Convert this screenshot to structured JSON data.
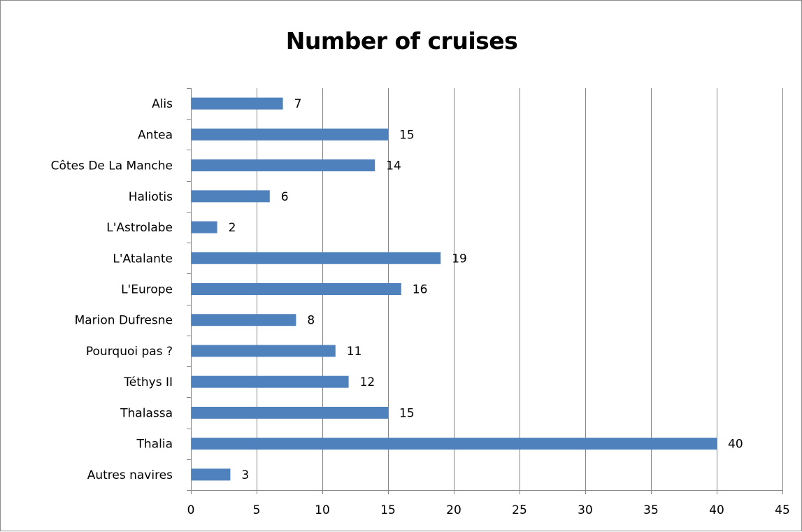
{
  "chart_data": {
    "type": "bar",
    "orientation": "horizontal",
    "title": "Number of cruises",
    "xlabel": "",
    "ylabel": "",
    "categories": [
      "Alis",
      "Antea",
      "Côtes De La Manche",
      "Haliotis",
      "L'Astrolabe",
      "L'Atalante",
      "L'Europe",
      "Marion Dufresne",
      "Pourquoi pas ?",
      "Téthys II",
      "Thalassa",
      "Thalia",
      "Autres navires"
    ],
    "values": [
      7,
      15,
      14,
      6,
      2,
      19,
      16,
      8,
      11,
      12,
      15,
      40,
      3
    ],
    "xlim": [
      0,
      45
    ],
    "xticks": [
      0,
      5,
      10,
      15,
      20,
      25,
      30,
      35,
      40,
      45
    ],
    "grid": "vertical",
    "legend": "none",
    "bar_color": "#4f81bd",
    "gridline_color": "#868686"
  }
}
